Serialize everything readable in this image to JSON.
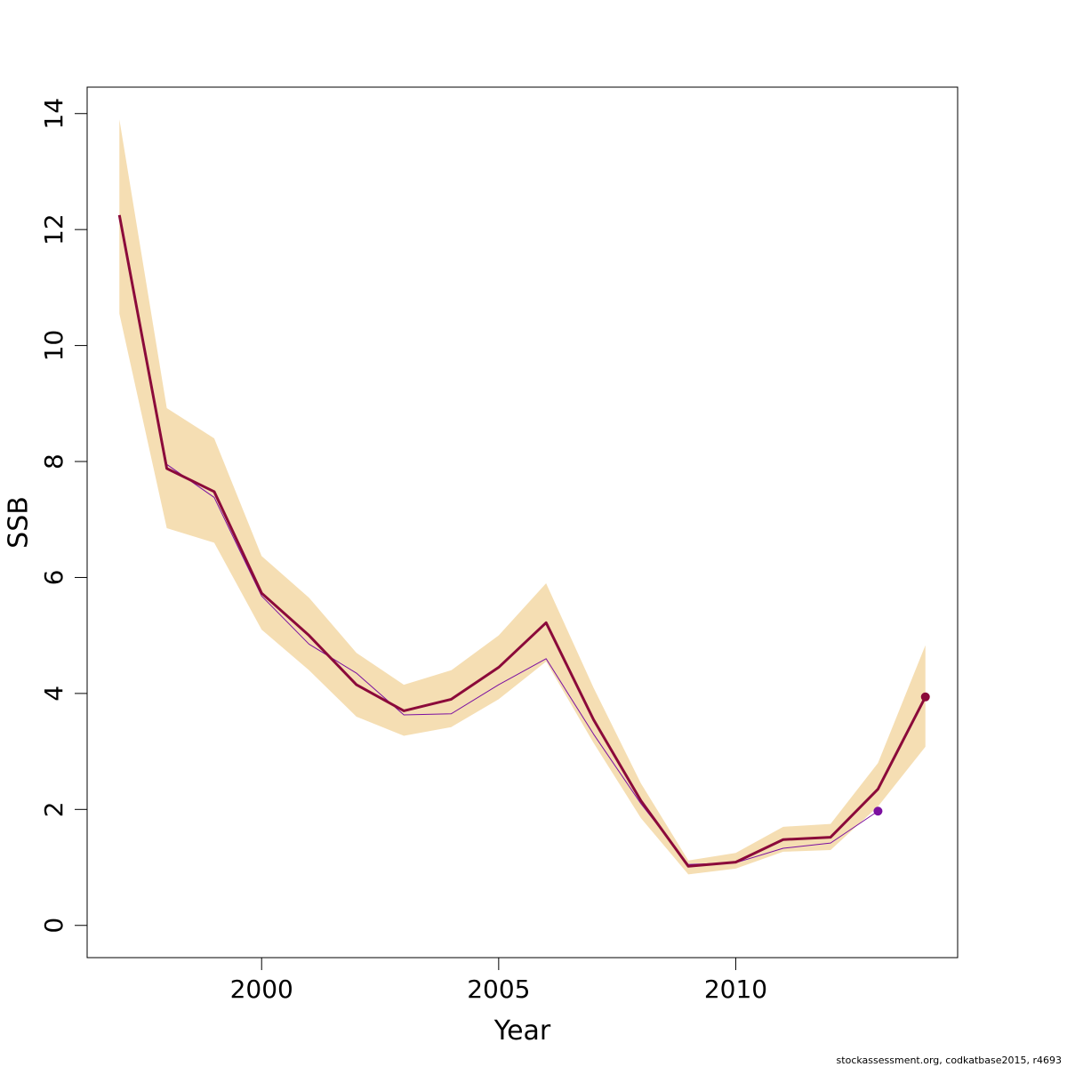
{
  "chart_data": {
    "type": "line",
    "xlabel": "Year",
    "ylabel": "SSB",
    "footer": "stockassessment.org, codkatbase2015, r4693",
    "x": [
      1997,
      1998,
      1999,
      2000,
      2001,
      2002,
      2003,
      2004,
      2005,
      2006,
      2007,
      2008,
      2009,
      2010,
      2011,
      2012,
      2013,
      2014
    ],
    "band": {
      "color": "#f5deb3",
      "upper": [
        13.9,
        8.92,
        8.4,
        6.37,
        5.65,
        4.7,
        4.15,
        4.4,
        5.0,
        5.9,
        4.1,
        2.45,
        1.12,
        1.25,
        1.7,
        1.75,
        2.8,
        4.83
      ],
      "lower": [
        10.55,
        6.85,
        6.6,
        5.1,
        4.4,
        3.6,
        3.27,
        3.42,
        3.9,
        4.55,
        3.15,
        1.85,
        0.88,
        0.98,
        1.27,
        1.3,
        2.05,
        3.08
      ]
    },
    "series": [
      {
        "color": "#7b0fa0",
        "width": 1,
        "values": [
          12.2,
          7.95,
          7.38,
          5.68,
          4.85,
          4.35,
          3.63,
          3.65,
          4.15,
          4.6,
          3.3,
          2.1,
          1.05,
          1.08,
          1.33,
          1.42,
          1.97,
          null
        ]
      },
      {
        "color": "#8b0a3a",
        "width": 3,
        "values": [
          12.25,
          7.88,
          7.48,
          5.73,
          5.0,
          4.15,
          3.7,
          3.9,
          4.45,
          5.22,
          3.55,
          2.15,
          1.02,
          1.09,
          1.48,
          1.52,
          2.35,
          3.94
        ]
      }
    ],
    "end_points": true,
    "xlim": [
      1996.32,
      2014.68
    ],
    "ylim": [
      -0.556,
      14.456
    ],
    "xticks": [
      2000,
      2005,
      2010
    ],
    "yticks": [
      0,
      2,
      4,
      6,
      8,
      10,
      12,
      14
    ]
  }
}
